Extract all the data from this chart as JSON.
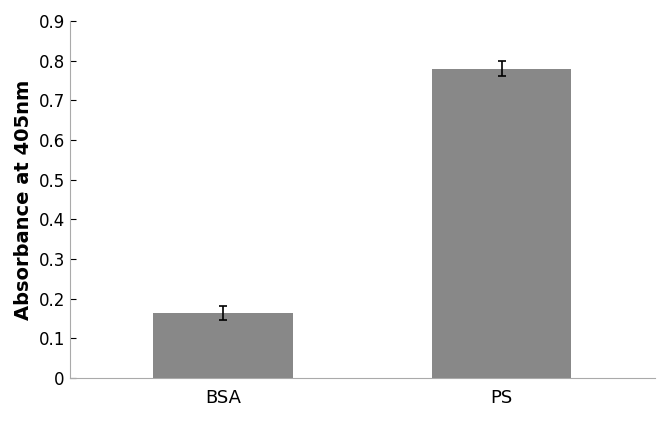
{
  "categories": [
    "BSA",
    "PS"
  ],
  "values": [
    0.163,
    0.78
  ],
  "errors": [
    0.018,
    0.018
  ],
  "bar_color": "#888888",
  "bar_width": 0.5,
  "ylabel": "Absorbance at 405nm",
  "ylim": [
    0,
    0.9
  ],
  "yticks": [
    0,
    0.1,
    0.2,
    0.3,
    0.4,
    0.5,
    0.6,
    0.7,
    0.8,
    0.9
  ],
  "ytick_labels": [
    "0",
    "0.1",
    "0.2",
    "0.3",
    "0.4",
    "0.5",
    "0.6",
    "0.7",
    "0.8",
    "0.9"
  ],
  "ylabel_fontsize": 14,
  "tick_fontsize": 12,
  "xlabel_fontsize": 13,
  "background_color": "#ffffff",
  "error_capsize": 3,
  "error_linewidth": 1.2,
  "xlim": [
    -0.55,
    1.55
  ]
}
